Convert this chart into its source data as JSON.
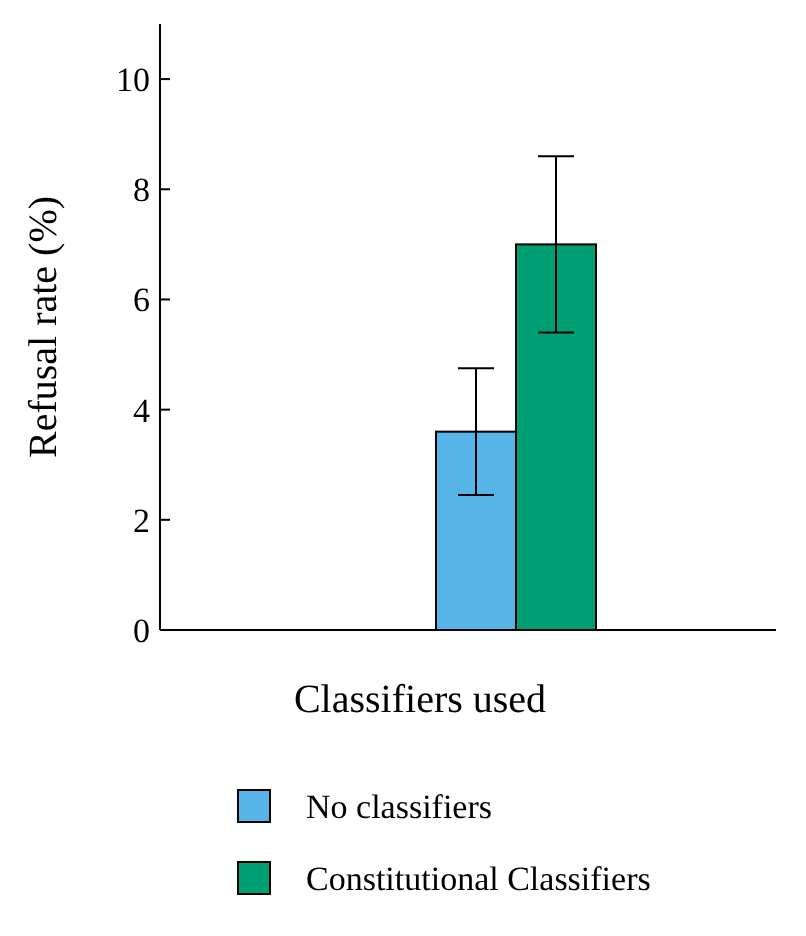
{
  "chart_data": {
    "type": "bar",
    "ylabel": "Refusal rate (%)",
    "xlabel": "Classifiers used",
    "categories": [
      null
    ],
    "series": [
      {
        "name": "No classifiers",
        "color": "#56b4e9",
        "values": [
          3.6
        ],
        "errors": [
          [
            2.45,
            4.75
          ]
        ]
      },
      {
        "name": "Constitutional Classifiers",
        "color": "#009e73",
        "values": [
          7.0
        ],
        "errors": [
          [
            5.4,
            8.6
          ]
        ]
      }
    ],
    "ylim": [
      0,
      11
    ],
    "yticks": [
      0,
      2,
      4,
      6,
      8,
      10
    ],
    "legend": "bottom"
  }
}
